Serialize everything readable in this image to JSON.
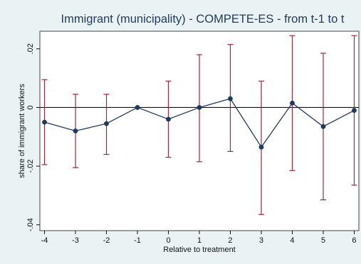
{
  "chart_data": {
    "type": "line",
    "title": "Immigrant (municipality) - COMPETE-ES - from t-1 to t",
    "xlabel": "Relative to treatment",
    "ylabel": "share of immigrant workers",
    "x": [
      -4,
      -3,
      -2,
      -1,
      0,
      1,
      2,
      3,
      4,
      5,
      6
    ],
    "x_tick_labels": [
      "-4",
      "-3",
      "-2",
      "-1",
      "0",
      "1",
      "2",
      "3",
      "4",
      "5",
      "6"
    ],
    "y_ticks": [
      0.02,
      0,
      -0.02,
      -0.04
    ],
    "y_tick_labels": [
      ".02",
      "0",
      "-.02",
      "-.04"
    ],
    "ylim": [
      -0.042,
      0.026
    ],
    "xlim": [
      -4.15,
      6.15
    ],
    "series": [
      {
        "values": [
          -0.005,
          -0.008,
          -0.0055,
          0.0,
          -0.004,
          0.0,
          0.003,
          -0.0135,
          0.0015,
          -0.0065,
          -0.001
        ],
        "ci_low": [
          -0.0195,
          -0.0205,
          -0.016,
          0.0,
          -0.017,
          -0.0185,
          -0.015,
          -0.0365,
          -0.0215,
          -0.0315,
          -0.0265
        ],
        "ci_high": [
          0.0095,
          0.0045,
          0.0045,
          0.0,
          0.009,
          0.018,
          0.0215,
          0.009,
          0.0245,
          0.0185,
          0.0245
        ]
      }
    ],
    "zero_line": true,
    "grid": false,
    "colors": {
      "background": "#eaf2f3",
      "plot_area": "#ffffff",
      "line": "#1e3a5f",
      "marker": "#1e3a5f",
      "error_bar": "#9c2a3a",
      "title": "#1e3a5f"
    }
  }
}
